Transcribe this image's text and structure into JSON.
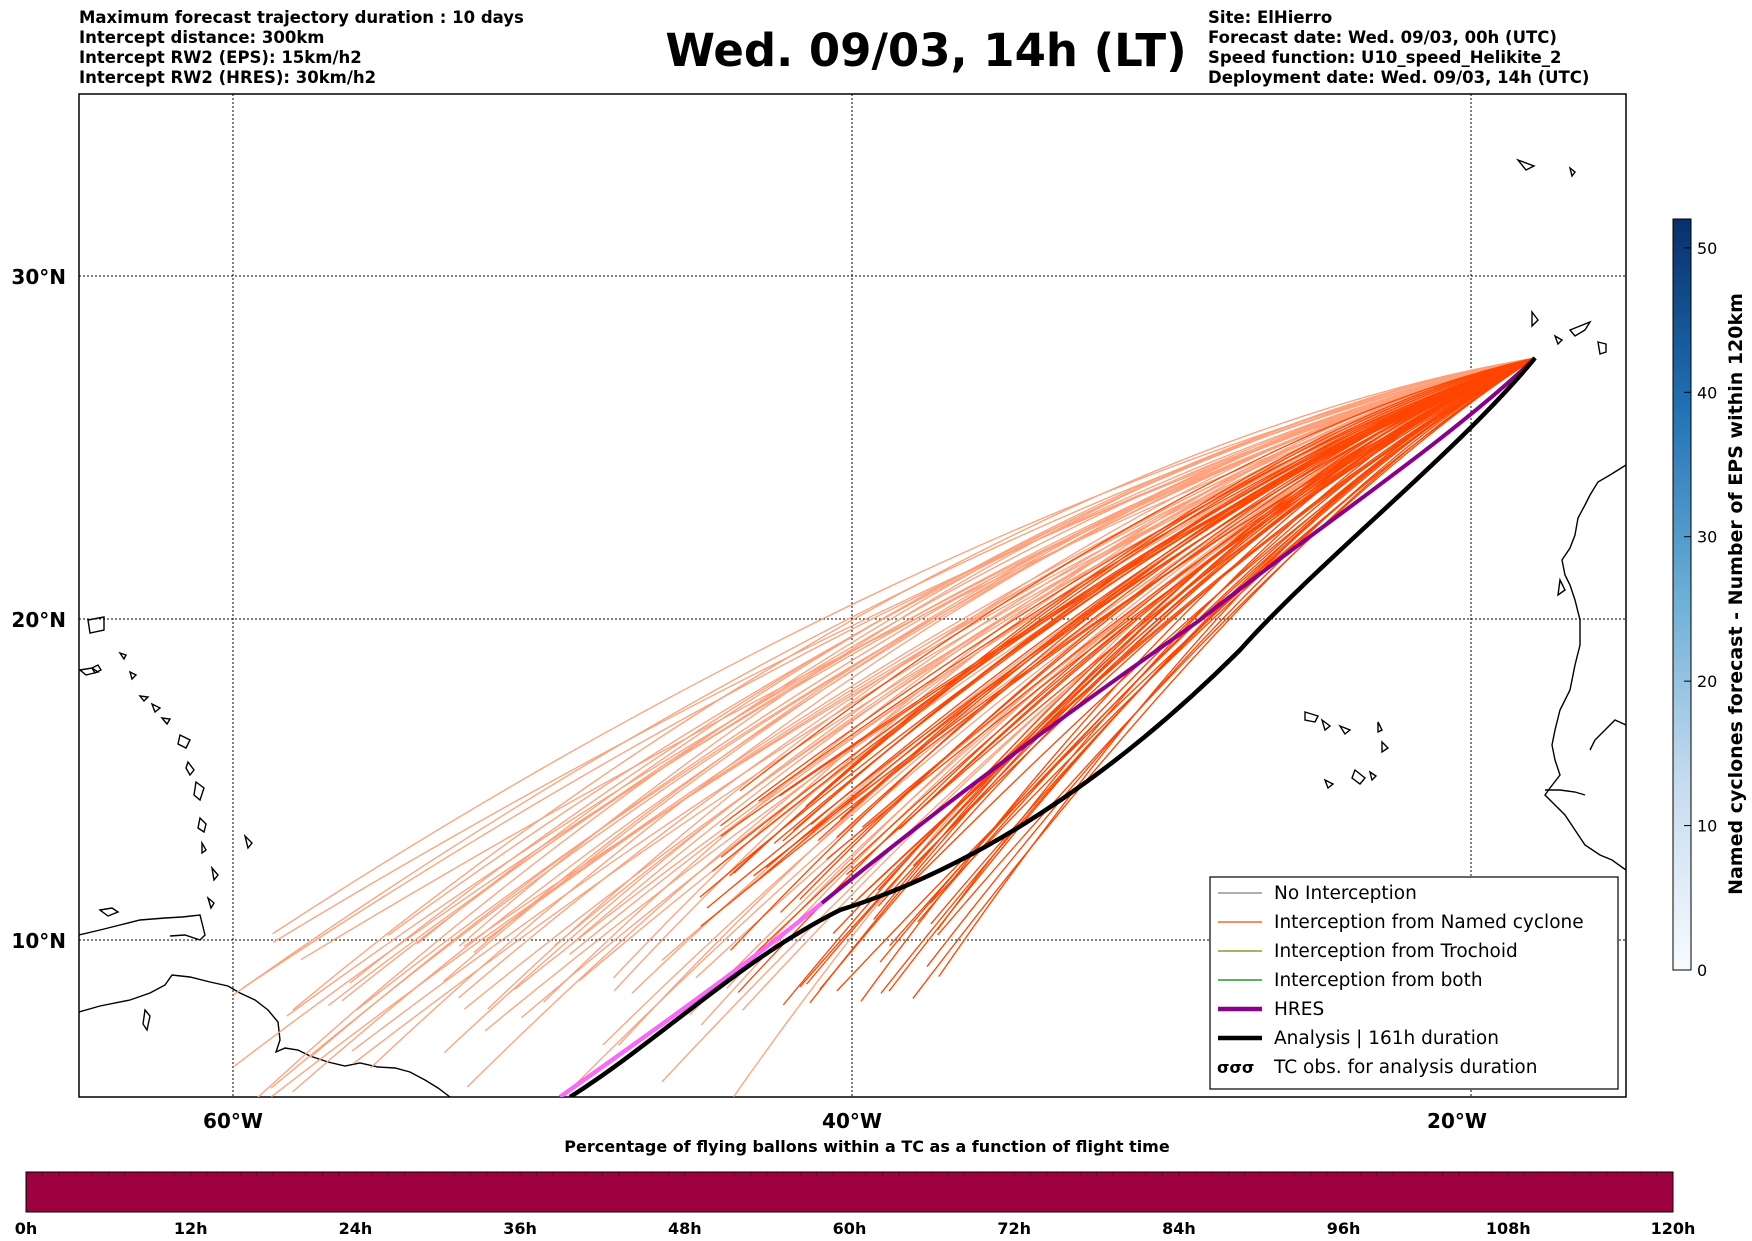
{
  "header": {
    "left_lines": [
      "Maximum forecast trajectory duration : 10 days",
      "Intercept distance: 300km",
      "Intercept RW2 (EPS):  15km/h2",
      "Intercept RW2 (HRES): 30km/h2"
    ],
    "title": "Wed. 09/03, 14h (LT)",
    "right_lines": [
      "Site: ElHierro",
      "Forecast date: Wed. 09/03, 00h (UTC)",
      "Speed function: U10_speed_Helikite_2",
      "Deployment date: Wed. 09/03, 14h (UTC)"
    ]
  },
  "map": {
    "lon_labels": [
      "60°W",
      "40°W",
      "20°W"
    ],
    "lat_labels": [
      "30°N",
      "20°N",
      "10°N"
    ],
    "colors": {
      "named_cyclone": "#ff4500",
      "named_cyclone_faded": "#ffa07a",
      "hres": "#8b008b",
      "hres_faded": "#ff66ff",
      "analysis": "#000000"
    }
  },
  "legend": {
    "items": [
      {
        "label": "No Interception",
        "color": "#808080",
        "style": "thin"
      },
      {
        "label": "Interception from Named cyclone",
        "color": "#ff4500",
        "style": "thin"
      },
      {
        "label": "Interception from Trochoid",
        "color": "#808000",
        "style": "thin"
      },
      {
        "label": "Interception from both",
        "color": "#008000",
        "style": "thin"
      },
      {
        "label": "HRES",
        "color": "#8b008b",
        "style": "thick"
      },
      {
        "label": "Analysis | 161h duration",
        "color": "#000000",
        "style": "thick"
      },
      {
        "label": "TC obs. for analysis duration",
        "color": "#000000",
        "style": "symbol"
      }
    ]
  },
  "right_colorbar": {
    "label": "Named cyclones forecast - Number of EPS within 120km",
    "ticks": [
      "0",
      "10",
      "20",
      "30",
      "40",
      "50"
    ],
    "range": [
      0,
      52
    ]
  },
  "bottom_colorbar": {
    "title": "Percentage of flying ballons within a TC as a function of flight time",
    "ticks": [
      "0h",
      "12h",
      "24h",
      "36h",
      "48h",
      "60h",
      "72h",
      "84h",
      "96h",
      "108h",
      "120h"
    ],
    "fill_color": "#9e0142"
  }
}
